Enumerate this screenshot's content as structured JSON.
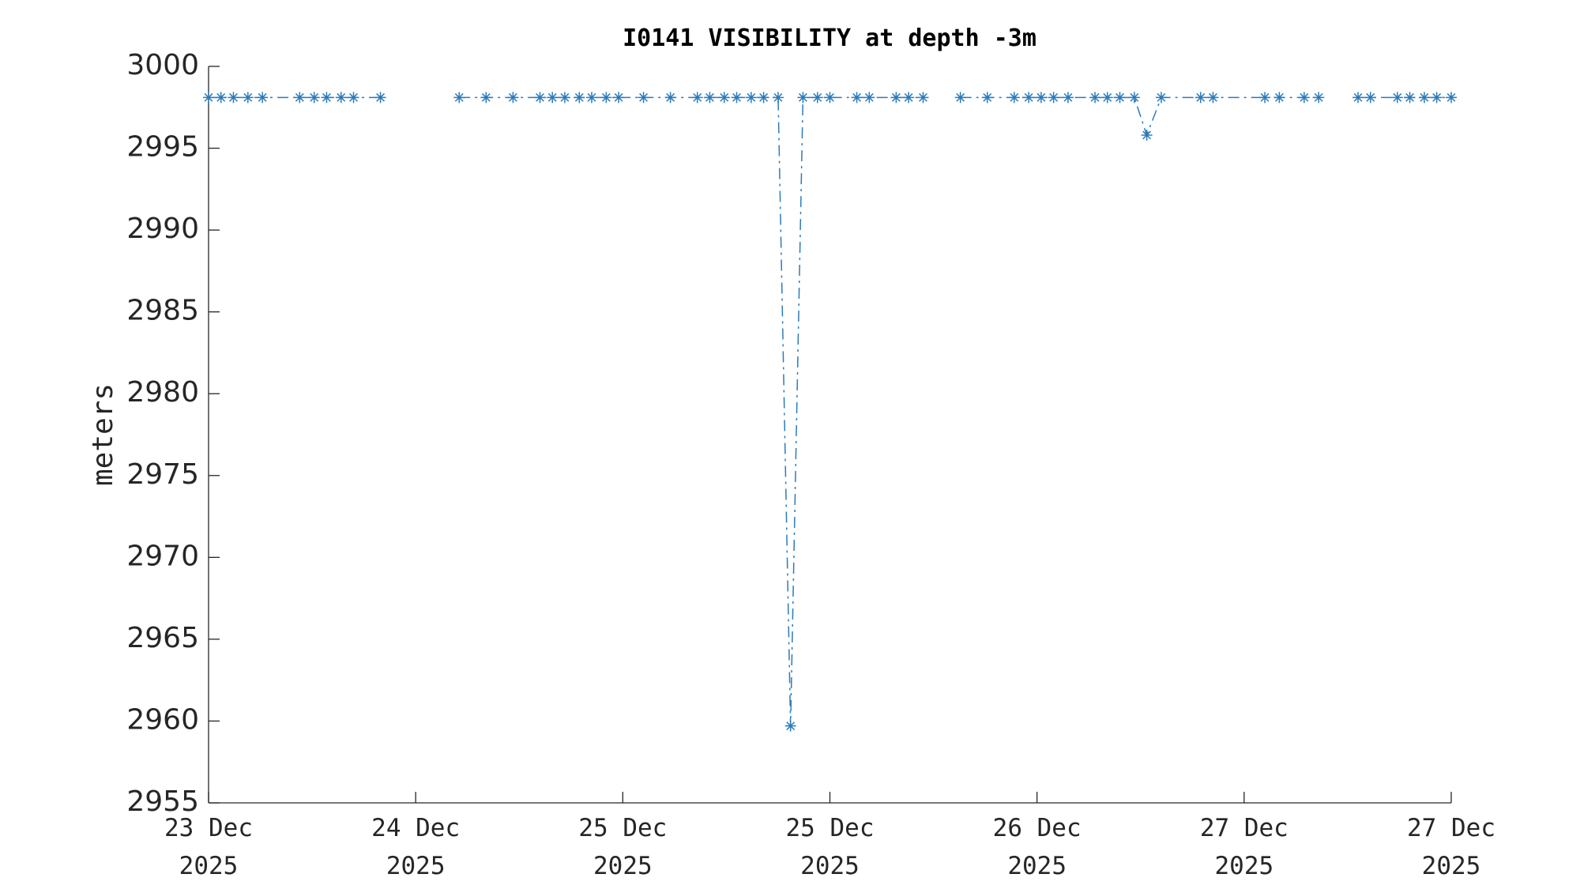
{
  "chart_data": {
    "type": "line",
    "title": "I0141 VISIBILITY at depth -3m",
    "ylabel": "meters",
    "x": [
      0,
      0.06,
      0.12,
      0.19,
      0.26,
      0.44,
      0.51,
      0.57,
      0.64,
      0.7,
      0.83,
      0.9,
      1.21,
      1.34,
      1.47,
      1.6,
      1.66,
      1.72,
      1.79,
      1.85,
      1.92,
      1.98,
      2.1,
      2.23,
      2.36,
      2.42,
      2.49,
      2.55,
      2.62,
      2.68,
      2.75,
      2.81,
      2.87,
      2.94,
      3.0,
      3.13,
      3.19,
      3.32,
      3.38,
      3.45,
      3.5,
      3.63,
      3.76,
      3.89,
      3.96,
      4.02,
      4.08,
      4.15,
      4.28,
      4.34,
      4.4,
      4.47,
      4.53,
      4.6,
      4.79,
      4.85,
      5.1,
      5.17,
      5.29,
      5.36,
      5.45,
      5.55,
      5.61,
      5.74,
      5.8,
      5.87,
      5.93,
      6.0
    ],
    "series": [
      {
        "name": "I0141",
        "color": "#2b7bba",
        "values": [
          2998.1,
          2998.1,
          2998.1,
          2998.1,
          2998.1,
          2998.1,
          2998.1,
          2998.1,
          2998.1,
          2998.1,
          2998.1,
          null,
          2998.1,
          2998.1,
          2998.1,
          2998.1,
          2998.1,
          2998.1,
          2998.1,
          2998.1,
          2998.1,
          2998.1,
          2998.1,
          2998.1,
          2998.1,
          2998.1,
          2998.1,
          2998.1,
          2998.1,
          2998.1,
          2998.1,
          2959.7,
          2998.1,
          2998.1,
          2998.1,
          2998.1,
          2998.1,
          2998.1,
          2998.1,
          2998.1,
          null,
          2998.1,
          2998.1,
          2998.1,
          2998.1,
          2998.1,
          2998.1,
          2998.1,
          2998.1,
          2998.1,
          2998.1,
          2998.1,
          2995.8,
          2998.1,
          2998.1,
          2998.1,
          2998.1,
          2998.1,
          2998.1,
          2998.1,
          null,
          2998.1,
          2998.1,
          2998.1,
          2998.1,
          2998.1,
          2998.1,
          2998.1
        ]
      }
    ],
    "xlim": [
      0,
      6
    ],
    "xticks": [
      {
        "value": 0,
        "label": "23 Dec\n2025"
      },
      {
        "value": 1,
        "label": "24 Dec\n2025"
      },
      {
        "value": 2,
        "label": "25 Dec\n2025"
      },
      {
        "value": 3,
        "label": "25 Dec\n2025"
      },
      {
        "value": 4,
        "label": "26 Dec\n2025"
      },
      {
        "value": 5,
        "label": "27 Dec\n2025"
      },
      {
        "value": 6,
        "label": "27 Dec\n2025"
      }
    ],
    "ylim": [
      2955,
      3000
    ],
    "yticks": [
      2955,
      2960,
      2965,
      2970,
      2975,
      2980,
      2985,
      2990,
      2995,
      3000
    ],
    "grid": false,
    "marker": "asterisk",
    "linestyle": "dash-dot"
  }
}
